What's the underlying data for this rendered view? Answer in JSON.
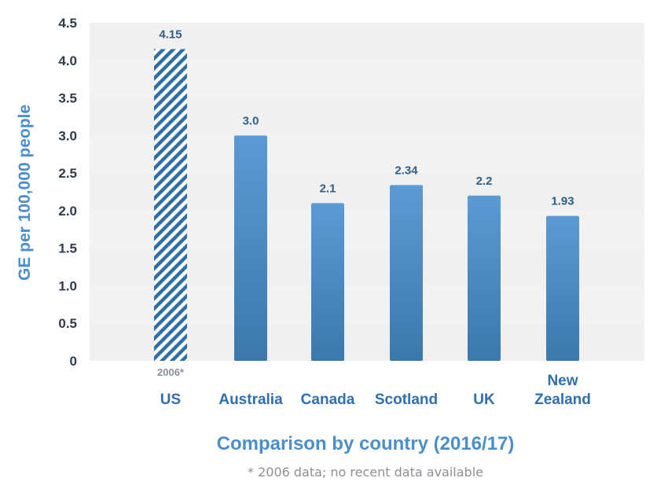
{
  "chart_data": {
    "type": "bar",
    "ylabel": "GE per 100,000 people",
    "xlabel": "Comparison by country (2016/17)",
    "footnote": "* 2006 data; no recent data available",
    "ylim": [
      0,
      4.5
    ],
    "yticks": [
      "0",
      "0.5",
      "1.0",
      "1.5",
      "2.0",
      "2.5",
      "3.0",
      "3.5",
      "4.0",
      "4.5"
    ],
    "grid": "alternating horizontal bands",
    "categories": [
      {
        "label_lines": [
          "US"
        ],
        "value": 4.15,
        "value_label": "4.15",
        "note": "2006*",
        "style": "hatched"
      },
      {
        "label_lines": [
          "Australia"
        ],
        "value": 3.0,
        "value_label": "3.0",
        "style": "solid"
      },
      {
        "label_lines": [
          "Canada"
        ],
        "value": 2.1,
        "value_label": "2.1",
        "style": "solid"
      },
      {
        "label_lines": [
          "Scotland"
        ],
        "value": 2.34,
        "value_label": "2.34",
        "style": "solid"
      },
      {
        "label_lines": [
          "UK"
        ],
        "value": 2.2,
        "value_label": "2.2",
        "style": "solid"
      },
      {
        "label_lines": [
          "New",
          "Zealand"
        ],
        "value": 1.93,
        "value_label": "1.93",
        "style": "solid"
      }
    ],
    "colors": {
      "bar_top": "#5b9bd5",
      "bar_bottom": "#3a78ad",
      "hatch": "#2f6fa8",
      "band": "#f2f2f2",
      "category_text": "#2f6fae",
      "value_text": "#2d5f88"
    }
  }
}
